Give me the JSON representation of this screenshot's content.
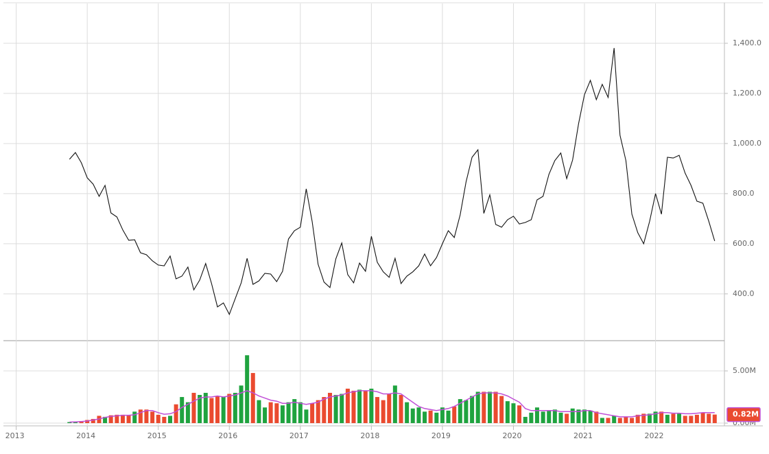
{
  "chart_data": [
    {
      "type": "line",
      "color": "#111111",
      "grid": true,
      "xlim": [
        2012.82,
        2022.97
      ],
      "ylim": [
        216,
        1559
      ],
      "yticks": [
        {
          "value": 400,
          "label": "400.0"
        },
        {
          "value": 600,
          "label": "600.0"
        },
        {
          "value": 800,
          "label": "800.0"
        },
        {
          "value": 1000,
          "label": "1,000.0"
        },
        {
          "value": 1200,
          "label": "1,200.0"
        },
        {
          "value": 1400,
          "label": "1,400.0"
        }
      ],
      "x": [
        2013.75,
        2013.833,
        2013.917,
        2014,
        2014.083,
        2014.167,
        2014.25,
        2014.333,
        2014.417,
        2014.5,
        2014.583,
        2014.667,
        2014.75,
        2014.833,
        2014.917,
        2015,
        2015.083,
        2015.167,
        2015.25,
        2015.333,
        2015.417,
        2015.5,
        2015.583,
        2015.667,
        2015.75,
        2015.833,
        2015.917,
        2016,
        2016.083,
        2016.167,
        2016.25,
        2016.333,
        2016.417,
        2016.5,
        2016.583,
        2016.667,
        2016.75,
        2016.833,
        2016.917,
        2017,
        2017.083,
        2017.167,
        2017.25,
        2017.333,
        2017.417,
        2017.5,
        2017.583,
        2017.667,
        2017.75,
        2017.833,
        2017.917,
        2018,
        2018.083,
        2018.167,
        2018.25,
        2018.333,
        2018.417,
        2018.5,
        2018.583,
        2018.667,
        2018.75,
        2018.833,
        2018.917,
        2019,
        2019.083,
        2019.167,
        2019.25,
        2019.333,
        2019.417,
        2019.5,
        2019.583,
        2019.667,
        2019.75,
        2019.833,
        2019.917,
        2020,
        2020.083,
        2020.167,
        2020.25,
        2020.333,
        2020.417,
        2020.5,
        2020.583,
        2020.667,
        2020.75,
        2020.833,
        2020.917,
        2021,
        2021.083,
        2021.167,
        2021.25,
        2021.333,
        2021.417,
        2021.5,
        2021.583,
        2021.667,
        2021.75,
        2021.833,
        2021.917,
        2022,
        2022.083,
        2022.167,
        2022.25,
        2022.333,
        2022.417,
        2022.5,
        2022.583,
        2022.667,
        2022.75,
        2022.833
      ],
      "values": [
        937,
        964,
        923,
        863,
        838,
        789,
        833,
        723,
        707,
        655,
        614,
        616,
        564,
        556,
        532,
        515,
        512,
        551,
        460,
        471,
        507,
        416,
        455,
        521,
        441,
        348,
        364,
        318,
        381,
        444,
        542,
        438,
        452,
        482,
        479,
        449,
        490,
        619,
        652,
        666,
        819,
        688,
        518,
        447,
        425,
        540,
        603,
        477,
        444,
        523,
        490,
        630,
        526,
        488,
        466,
        542,
        441,
        471,
        488,
        512,
        559,
        512,
        545,
        600,
        652,
        625,
        715,
        847,
        945,
        975,
        721,
        795,
        677,
        666,
        696,
        710,
        679,
        685,
        696,
        775,
        789,
        877,
        932,
        962,
        860,
        934,
        1079,
        1195,
        1252,
        1175,
        1236,
        1184,
        1381,
        1033,
        932,
        718,
        644,
        600,
        690,
        800,
        718,
        945,
        942,
        953,
        882,
        833,
        770,
        762,
        690,
        611
      ]
    },
    {
      "type": "volume",
      "up_color": "#1fa33f",
      "down_color": "#ea4a2f",
      "grid": true,
      "xlim": [
        2012.82,
        2022.97
      ],
      "ylim": [
        -0.26,
        7.83
      ],
      "xticks": [
        2013,
        2014,
        2015,
        2016,
        2017,
        2018,
        2019,
        2020,
        2021,
        2022
      ],
      "yticks": [
        {
          "value": 0,
          "label": "0.00M"
        },
        {
          "value": 5,
          "label": "5.00M"
        }
      ],
      "values": [
        0.1,
        0.15,
        0.2,
        0.3,
        0.4,
        0.7,
        0.6,
        0.75,
        0.8,
        0.8,
        0.75,
        1.1,
        1.3,
        1.3,
        1.1,
        0.8,
        0.6,
        0.7,
        1.8,
        2.5,
        2.0,
        2.9,
        2.7,
        2.9,
        2.4,
        2.6,
        2.5,
        2.8,
        2.9,
        3.6,
        6.5,
        4.8,
        2.2,
        1.5,
        2.0,
        1.9,
        1.7,
        2.0,
        2.3,
        2.0,
        1.3,
        1.9,
        2.2,
        2.5,
        2.9,
        2.7,
        2.8,
        3.3,
        3.1,
        3.2,
        3.1,
        3.3,
        2.5,
        2.2,
        2.8,
        3.6,
        2.7,
        2.0,
        1.4,
        1.5,
        1.1,
        1.2,
        1.0,
        1.5,
        1.2,
        1.6,
        2.3,
        2.2,
        2.6,
        3.0,
        3.0,
        3.0,
        3.0,
        2.6,
        2.1,
        1.9,
        1.7,
        0.6,
        1.0,
        1.5,
        1.1,
        1.2,
        1.3,
        1.0,
        0.9,
        1.4,
        1.3,
        1.3,
        1.2,
        1.1,
        0.5,
        0.5,
        0.7,
        0.5,
        0.6,
        0.5,
        0.8,
        0.9,
        0.9,
        1.1,
        1.1,
        0.8,
        0.9,
        0.9,
        0.7,
        0.7,
        0.8,
        1.0,
        0.9,
        0.82
      ],
      "ma": {
        "color": "#c04fd6",
        "values": [
          0.1,
          0.12,
          0.15,
          0.2,
          0.3,
          0.4,
          0.55,
          0.65,
          0.7,
          0.75,
          0.75,
          0.8,
          1.0,
          1.2,
          1.2,
          1.0,
          0.85,
          0.9,
          1.1,
          1.5,
          1.8,
          2.1,
          2.4,
          2.5,
          2.5,
          2.6,
          2.5,
          2.6,
          2.7,
          2.9,
          3.1,
          2.9,
          2.6,
          2.4,
          2.2,
          2.1,
          1.9,
          1.9,
          2.0,
          1.9,
          1.8,
          1.9,
          2.0,
          2.3,
          2.5,
          2.6,
          2.7,
          2.9,
          3.0,
          3.1,
          3.1,
          3.1,
          3.0,
          2.8,
          2.8,
          2.9,
          2.8,
          2.4,
          2.0,
          1.6,
          1.4,
          1.3,
          1.2,
          1.3,
          1.4,
          1.6,
          1.9,
          2.2,
          2.5,
          2.8,
          2.9,
          2.9,
          2.9,
          2.8,
          2.6,
          2.3,
          2.0,
          1.4,
          1.2,
          1.2,
          1.2,
          1.2,
          1.2,
          1.1,
          1.1,
          1.1,
          1.1,
          1.2,
          1.2,
          1.0,
          0.9,
          0.8,
          0.7,
          0.6,
          0.6,
          0.6,
          0.7,
          0.75,
          0.8,
          0.9,
          1.0,
          1.0,
          0.95,
          0.95,
          0.9,
          0.9,
          0.95,
          1.0,
          1.0,
          1.0
        ]
      },
      "last_marker": {
        "value": 0.82,
        "label": "0.82M"
      }
    }
  ]
}
